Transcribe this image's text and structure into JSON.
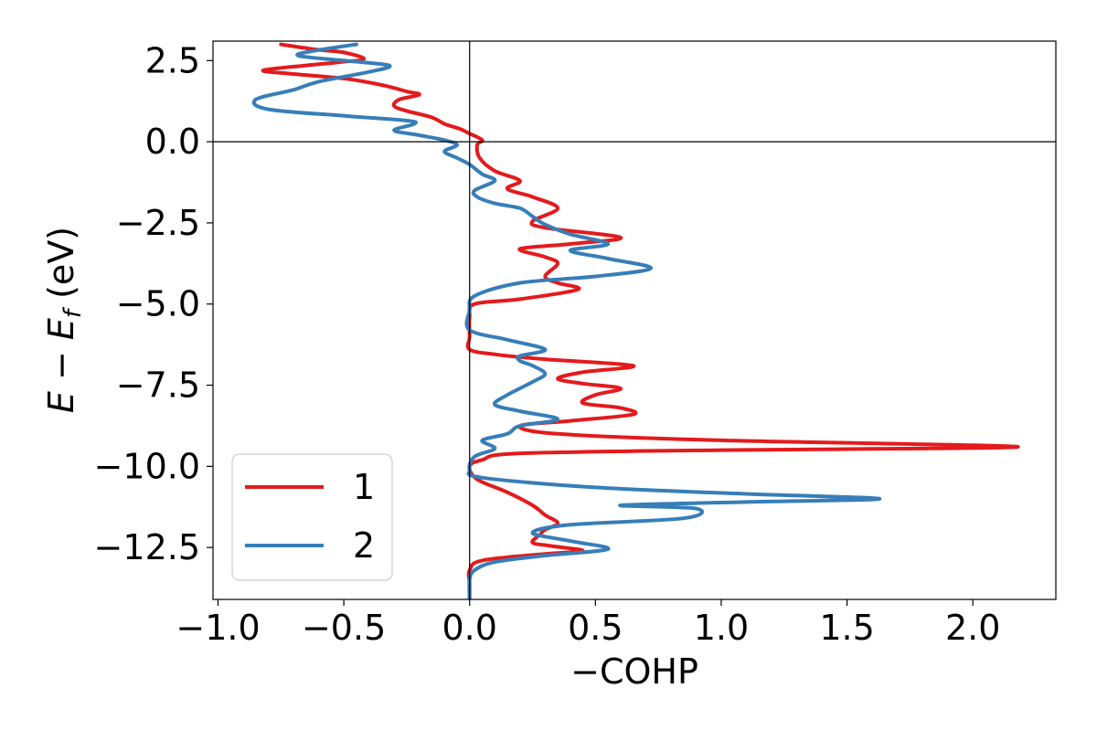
{
  "chart_data": {
    "type": "line",
    "orientation": "energy-on-y",
    "xlabel": "−COHP",
    "ylabel": "E − E_f (eV)",
    "ylabel_parts": {
      "E": "E",
      "minus": " − ",
      "Ef_base": "E",
      "Ef_sub": "f",
      "unit": " (eV)"
    },
    "xlim": [
      -1.02,
      2.33
    ],
    "ylim": [
      -14.1,
      3.1
    ],
    "x_ticks": [
      {
        "value": -1.0,
        "label": "−1.0"
      },
      {
        "value": -0.5,
        "label": "−0.5"
      },
      {
        "value": 0.0,
        "label": "0.0"
      },
      {
        "value": 0.5,
        "label": "0.5"
      },
      {
        "value": 1.0,
        "label": "1.0"
      },
      {
        "value": 1.5,
        "label": "1.5"
      },
      {
        "value": 2.0,
        "label": "2.0"
      }
    ],
    "y_ticks": [
      {
        "value": 2.5,
        "label": "2.5"
      },
      {
        "value": 0.0,
        "label": "0.0"
      },
      {
        "value": -2.5,
        "label": "−2.5"
      },
      {
        "value": -5.0,
        "label": "−5.0"
      },
      {
        "value": -7.5,
        "label": "−7.5"
      },
      {
        "value": -10.0,
        "label": "−10.0"
      },
      {
        "value": -12.5,
        "label": "−12.5"
      }
    ],
    "reference_lines": {
      "x": 0.0,
      "y": 0.0
    },
    "grid": false,
    "legend_position": "lower-left",
    "series": [
      {
        "name": "1",
        "color": "#e41a1c",
        "points": [
          [
            -0.75,
            3.0
          ],
          [
            -0.62,
            2.85
          ],
          [
            -0.5,
            2.75
          ],
          [
            -0.42,
            2.55
          ],
          [
            -0.52,
            2.45
          ],
          [
            -0.65,
            2.35
          ],
          [
            -0.82,
            2.2
          ],
          [
            -0.72,
            2.1
          ],
          [
            -0.5,
            1.95
          ],
          [
            -0.35,
            1.75
          ],
          [
            -0.25,
            1.55
          ],
          [
            -0.2,
            1.45
          ],
          [
            -0.28,
            1.3
          ],
          [
            -0.3,
            1.1
          ],
          [
            -0.25,
            0.95
          ],
          [
            -0.15,
            0.75
          ],
          [
            -0.1,
            0.55
          ],
          [
            -0.04,
            0.4
          ],
          [
            0.0,
            0.25
          ],
          [
            0.05,
            0.05
          ],
          [
            0.03,
            -0.1
          ],
          [
            0.04,
            -0.5
          ],
          [
            0.1,
            -0.9
          ],
          [
            0.2,
            -1.2
          ],
          [
            0.15,
            -1.45
          ],
          [
            0.25,
            -1.7
          ],
          [
            0.35,
            -2.05
          ],
          [
            0.25,
            -2.45
          ],
          [
            0.3,
            -2.65
          ],
          [
            0.6,
            -2.95
          ],
          [
            0.4,
            -3.15
          ],
          [
            0.2,
            -3.3
          ],
          [
            0.3,
            -3.55
          ],
          [
            0.35,
            -3.75
          ],
          [
            0.3,
            -4.15
          ],
          [
            0.35,
            -4.35
          ],
          [
            0.43,
            -4.55
          ],
          [
            0.2,
            -4.85
          ],
          [
            0.02,
            -5.0
          ],
          [
            0.0,
            -5.4
          ],
          [
            0.0,
            -6.0
          ],
          [
            0.0,
            -6.4
          ],
          [
            0.1,
            -6.55
          ],
          [
            0.3,
            -6.7
          ],
          [
            0.65,
            -6.9
          ],
          [
            0.45,
            -7.1
          ],
          [
            0.35,
            -7.3
          ],
          [
            0.45,
            -7.45
          ],
          [
            0.6,
            -7.6
          ],
          [
            0.5,
            -7.8
          ],
          [
            0.45,
            -8.05
          ],
          [
            0.6,
            -8.2
          ],
          [
            0.65,
            -8.4
          ],
          [
            0.4,
            -8.6
          ],
          [
            0.2,
            -8.75
          ],
          [
            0.35,
            -9.0
          ],
          [
            1.0,
            -9.2
          ],
          [
            2.18,
            -9.4
          ],
          [
            1.0,
            -9.5
          ],
          [
            0.2,
            -9.6
          ],
          [
            0.05,
            -9.8
          ],
          [
            0.0,
            -10.0
          ],
          [
            0.03,
            -10.4
          ],
          [
            0.15,
            -10.8
          ],
          [
            0.25,
            -11.2
          ],
          [
            0.3,
            -11.5
          ],
          [
            0.35,
            -11.75
          ],
          [
            0.3,
            -11.95
          ],
          [
            0.28,
            -12.1
          ],
          [
            0.25,
            -12.35
          ],
          [
            0.32,
            -12.45
          ],
          [
            0.45,
            -12.6
          ],
          [
            0.3,
            -12.7
          ],
          [
            0.05,
            -12.9
          ],
          [
            0.0,
            -13.2
          ],
          [
            0.0,
            -13.6
          ],
          [
            0.0,
            -14.1
          ]
        ]
      },
      {
        "name": "2",
        "color": "#377eb8",
        "points": [
          [
            -0.45,
            3.0
          ],
          [
            -0.62,
            2.8
          ],
          [
            -0.68,
            2.65
          ],
          [
            -0.5,
            2.5
          ],
          [
            -0.32,
            2.35
          ],
          [
            -0.4,
            2.15
          ],
          [
            -0.6,
            1.85
          ],
          [
            -0.7,
            1.6
          ],
          [
            -0.85,
            1.3
          ],
          [
            -0.8,
            1.0
          ],
          [
            -0.5,
            0.8
          ],
          [
            -0.25,
            0.65
          ],
          [
            -0.22,
            0.55
          ],
          [
            -0.3,
            0.35
          ],
          [
            -0.2,
            0.2
          ],
          [
            -0.1,
            0.05
          ],
          [
            -0.05,
            -0.1
          ],
          [
            -0.1,
            -0.3
          ],
          [
            -0.05,
            -0.5
          ],
          [
            0.0,
            -0.7
          ],
          [
            0.05,
            -1.0
          ],
          [
            0.1,
            -1.2
          ],
          [
            0.02,
            -1.5
          ],
          [
            0.03,
            -1.7
          ],
          [
            0.1,
            -1.9
          ],
          [
            0.2,
            -2.05
          ],
          [
            0.25,
            -2.3
          ],
          [
            0.3,
            -2.55
          ],
          [
            0.4,
            -2.85
          ],
          [
            0.55,
            -3.15
          ],
          [
            0.4,
            -3.35
          ],
          [
            0.55,
            -3.6
          ],
          [
            0.72,
            -3.9
          ],
          [
            0.5,
            -4.15
          ],
          [
            0.2,
            -4.35
          ],
          [
            0.02,
            -4.75
          ],
          [
            0.0,
            -5.2
          ],
          [
            0.0,
            -5.8
          ],
          [
            0.15,
            -6.1
          ],
          [
            0.3,
            -6.4
          ],
          [
            0.2,
            -6.6
          ],
          [
            0.2,
            -6.75
          ],
          [
            0.25,
            -6.9
          ],
          [
            0.3,
            -7.15
          ],
          [
            0.25,
            -7.4
          ],
          [
            0.15,
            -7.8
          ],
          [
            0.1,
            -8.1
          ],
          [
            0.2,
            -8.3
          ],
          [
            0.35,
            -8.55
          ],
          [
            0.2,
            -8.75
          ],
          [
            0.15,
            -9.0
          ],
          [
            0.05,
            -9.2
          ],
          [
            0.1,
            -9.45
          ],
          [
            0.02,
            -9.7
          ],
          [
            0.0,
            -10.1
          ],
          [
            0.05,
            -10.35
          ],
          [
            0.5,
            -10.65
          ],
          [
            1.1,
            -10.85
          ],
          [
            1.63,
            -11.0
          ],
          [
            1.1,
            -11.1
          ],
          [
            0.6,
            -11.2
          ],
          [
            0.9,
            -11.3
          ],
          [
            0.85,
            -11.6
          ],
          [
            0.4,
            -11.8
          ],
          [
            0.25,
            -12.05
          ],
          [
            0.4,
            -12.3
          ],
          [
            0.55,
            -12.55
          ],
          [
            0.3,
            -12.75
          ],
          [
            0.1,
            -12.95
          ],
          [
            0.02,
            -13.2
          ],
          [
            0.0,
            -13.5
          ],
          [
            0.0,
            -14.1
          ]
        ]
      }
    ]
  }
}
